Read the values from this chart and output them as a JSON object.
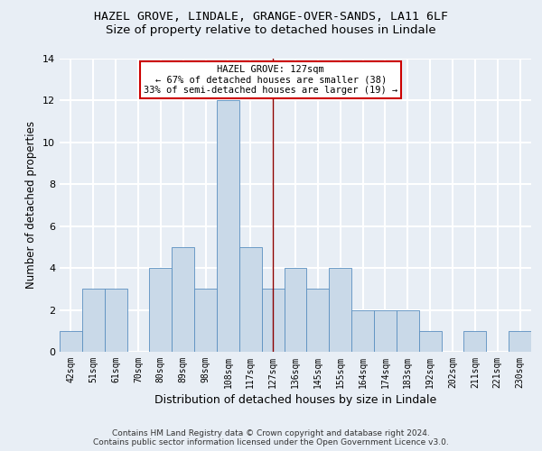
{
  "title1": "HAZEL GROVE, LINDALE, GRANGE-OVER-SANDS, LA11 6LF",
  "title2": "Size of property relative to detached houses in Lindale",
  "xlabel": "Distribution of detached houses by size in Lindale",
  "ylabel": "Number of detached properties",
  "categories": [
    "42sqm",
    "51sqm",
    "61sqm",
    "70sqm",
    "80sqm",
    "89sqm",
    "98sqm",
    "108sqm",
    "117sqm",
    "127sqm",
    "136sqm",
    "145sqm",
    "155sqm",
    "164sqm",
    "174sqm",
    "183sqm",
    "192sqm",
    "202sqm",
    "211sqm",
    "221sqm",
    "230sqm"
  ],
  "values": [
    1,
    3,
    3,
    0,
    4,
    5,
    3,
    12,
    5,
    3,
    4,
    3,
    4,
    2,
    2,
    2,
    1,
    0,
    1,
    0,
    1
  ],
  "bar_color": "#c9d9e8",
  "bar_edge_color": "#5a8fc0",
  "vline_x": 9,
  "vline_color": "#8b0000",
  "annotation_line1": "HAZEL GROVE: 127sqm",
  "annotation_line2": "← 67% of detached houses are smaller (38)",
  "annotation_line3": "33% of semi-detached houses are larger (19) →",
  "annotation_box_color": "#ffffff",
  "annotation_box_edge": "#cc0000",
  "ylim": [
    0,
    14
  ],
  "yticks": [
    0,
    2,
    4,
    6,
    8,
    10,
    12,
    14
  ],
  "footer1": "Contains HM Land Registry data © Crown copyright and database right 2024.",
  "footer2": "Contains public sector information licensed under the Open Government Licence v3.0.",
  "bg_color": "#e8eef5",
  "grid_color": "#ffffff",
  "title1_fontsize": 9.5,
  "title2_fontsize": 9.5,
  "xlabel_fontsize": 9,
  "ylabel_fontsize": 8.5,
  "tick_fontsize": 7,
  "footer_fontsize": 6.5,
  "annot_fontsize": 7.5
}
